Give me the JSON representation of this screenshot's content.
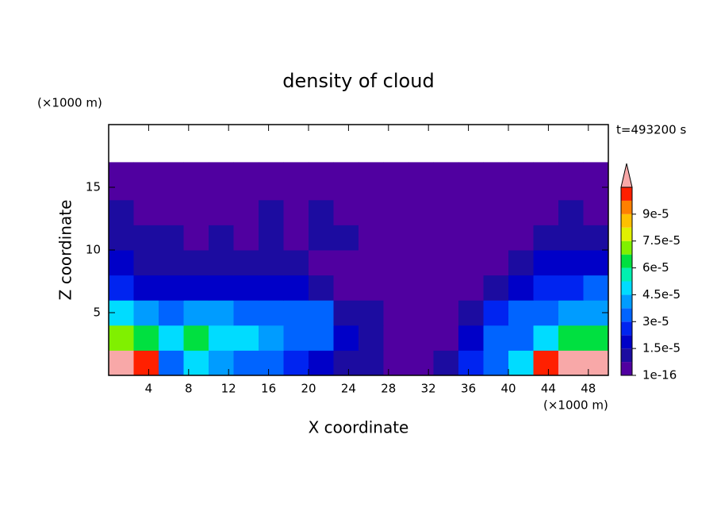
{
  "chart_data": {
    "type": "contour",
    "title": "density of cloud",
    "xlabel": "X coordinate",
    "ylabel": "Z coordinate",
    "x_unit": "(×1000 m)",
    "y_unit": "(×1000 m)",
    "time_label": "t=493200 s",
    "xlim": [
      0,
      50
    ],
    "ylim": [
      0,
      20
    ],
    "xticks": [
      4,
      8,
      12,
      16,
      20,
      24,
      28,
      32,
      36,
      40,
      44,
      48
    ],
    "yticks": [
      5,
      10,
      15
    ],
    "x_edges": [
      0,
      2.5,
      5,
      7.5,
      10,
      12.5,
      15,
      17.5,
      20,
      22.5,
      25,
      27.5,
      30,
      32.5,
      35,
      37.5,
      40,
      42.5,
      45,
      47.5,
      50
    ],
    "z_edges": [
      0,
      2,
      4,
      6,
      8,
      10,
      12,
      14,
      17
    ],
    "z": [
      [
        0.00012,
        0.0001,
        3e-05,
        5e-05,
        4e-05,
        3.5e-05,
        3e-05,
        2.5e-05,
        2e-05,
        1.2e-05,
        8e-06,
        3e-06,
        3e-06,
        1e-05,
        2.5e-05,
        3e-05,
        5e-05,
        0.0001,
        0.00012,
        0.00012
      ],
      [
        7e-05,
        6e-05,
        5e-05,
        6.5e-05,
        5e-05,
        4.5e-05,
        4e-05,
        3.5e-05,
        3e-05,
        2e-05,
        1.2e-05,
        5e-06,
        3e-06,
        5e-06,
        2e-05,
        3e-05,
        3.5e-05,
        5e-05,
        6e-05,
        6e-05
      ],
      [
        4.5e-05,
        4e-05,
        3.5e-05,
        4e-05,
        3.8e-05,
        3.5e-05,
        3.5e-05,
        3.2e-05,
        3e-05,
        1.2e-05,
        8e-06,
        3e-06,
        2e-06,
        3e-06,
        1e-05,
        2.5e-05,
        3e-05,
        3.5e-05,
        3.8e-05,
        4e-05
      ],
      [
        2.5e-05,
        2e-05,
        2e-05,
        1.8e-05,
        2.2e-05,
        1.8e-05,
        1.5e-05,
        1.8e-05,
        1e-05,
        5e-06,
        3e-06,
        2e-06,
        2e-06,
        2e-06,
        5e-06,
        1.2e-05,
        2e-05,
        2.5e-05,
        2.8e-05,
        3e-05
      ],
      [
        1.5e-05,
        1.2e-05,
        1.3e-05,
        1e-05,
        1.2e-05,
        1e-05,
        1.2e-05,
        1e-05,
        5e-06,
        3e-06,
        2e-06,
        2e-06,
        2e-06,
        2e-06,
        2e-06,
        5e-06,
        1e-05,
        1.5e-05,
        1.8e-05,
        2e-05
      ],
      [
        1e-05,
        8e-06,
        8e-06,
        5e-06,
        9e-06,
        6e-06,
        8e-06,
        6e-06,
        8e-06,
        8e-06,
        2e-06,
        2e-06,
        2e-06,
        2e-06,
        2e-06,
        2e-06,
        3e-06,
        8e-06,
        1e-05,
        1.2e-05
      ],
      [
        8e-06,
        3e-06,
        6e-06,
        3e-06,
        7e-06,
        3e-06,
        8e-06,
        3e-06,
        8e-06,
        6e-06,
        2e-06,
        2e-06,
        2e-06,
        2e-06,
        2e-06,
        2e-06,
        2e-06,
        4e-06,
        8e-06,
        6e-06
      ],
      [
        2e-06,
        2e-06,
        2e-06,
        2e-06,
        2e-06,
        2e-06,
        2e-06,
        2e-06,
        2e-06,
        2e-06,
        2e-06,
        2e-06,
        2e-06,
        2e-06,
        2e-06,
        2e-06,
        2e-06,
        2e-06,
        2e-06,
        2e-06
      ]
    ],
    "levels": [
      1e-16,
      7.5e-06,
      1.5e-05,
      2.25e-05,
      3e-05,
      3.75e-05,
      4.5e-05,
      5.25e-05,
      6e-05,
      6.75e-05,
      7.5e-05,
      8.25e-05,
      9e-05,
      9.75e-05,
      0.000105
    ],
    "colors": [
      "#5000a0",
      "#1c0ca0",
      "#0000c8",
      "#0024f0",
      "#0064ff",
      "#009cff",
      "#00dcff",
      "#00f0b0",
      "#00e040",
      "#80f000",
      "#e0f000",
      "#ffc000",
      "#ff8000",
      "#ff2000"
    ],
    "over_color": "#f8a8a8",
    "colorbar_ticks": [
      {
        "value": 1e-16,
        "label": "1e-16"
      },
      {
        "value": 1.5e-05,
        "label": "1.5e-5"
      },
      {
        "value": 3e-05,
        "label": "3e-5"
      },
      {
        "value": 4.5e-05,
        "label": "4.5e-5"
      },
      {
        "value": 6e-05,
        "label": "6e-5"
      },
      {
        "value": 7.5e-05,
        "label": "7.5e-5"
      },
      {
        "value": 9e-05,
        "label": "9e-5"
      }
    ]
  }
}
